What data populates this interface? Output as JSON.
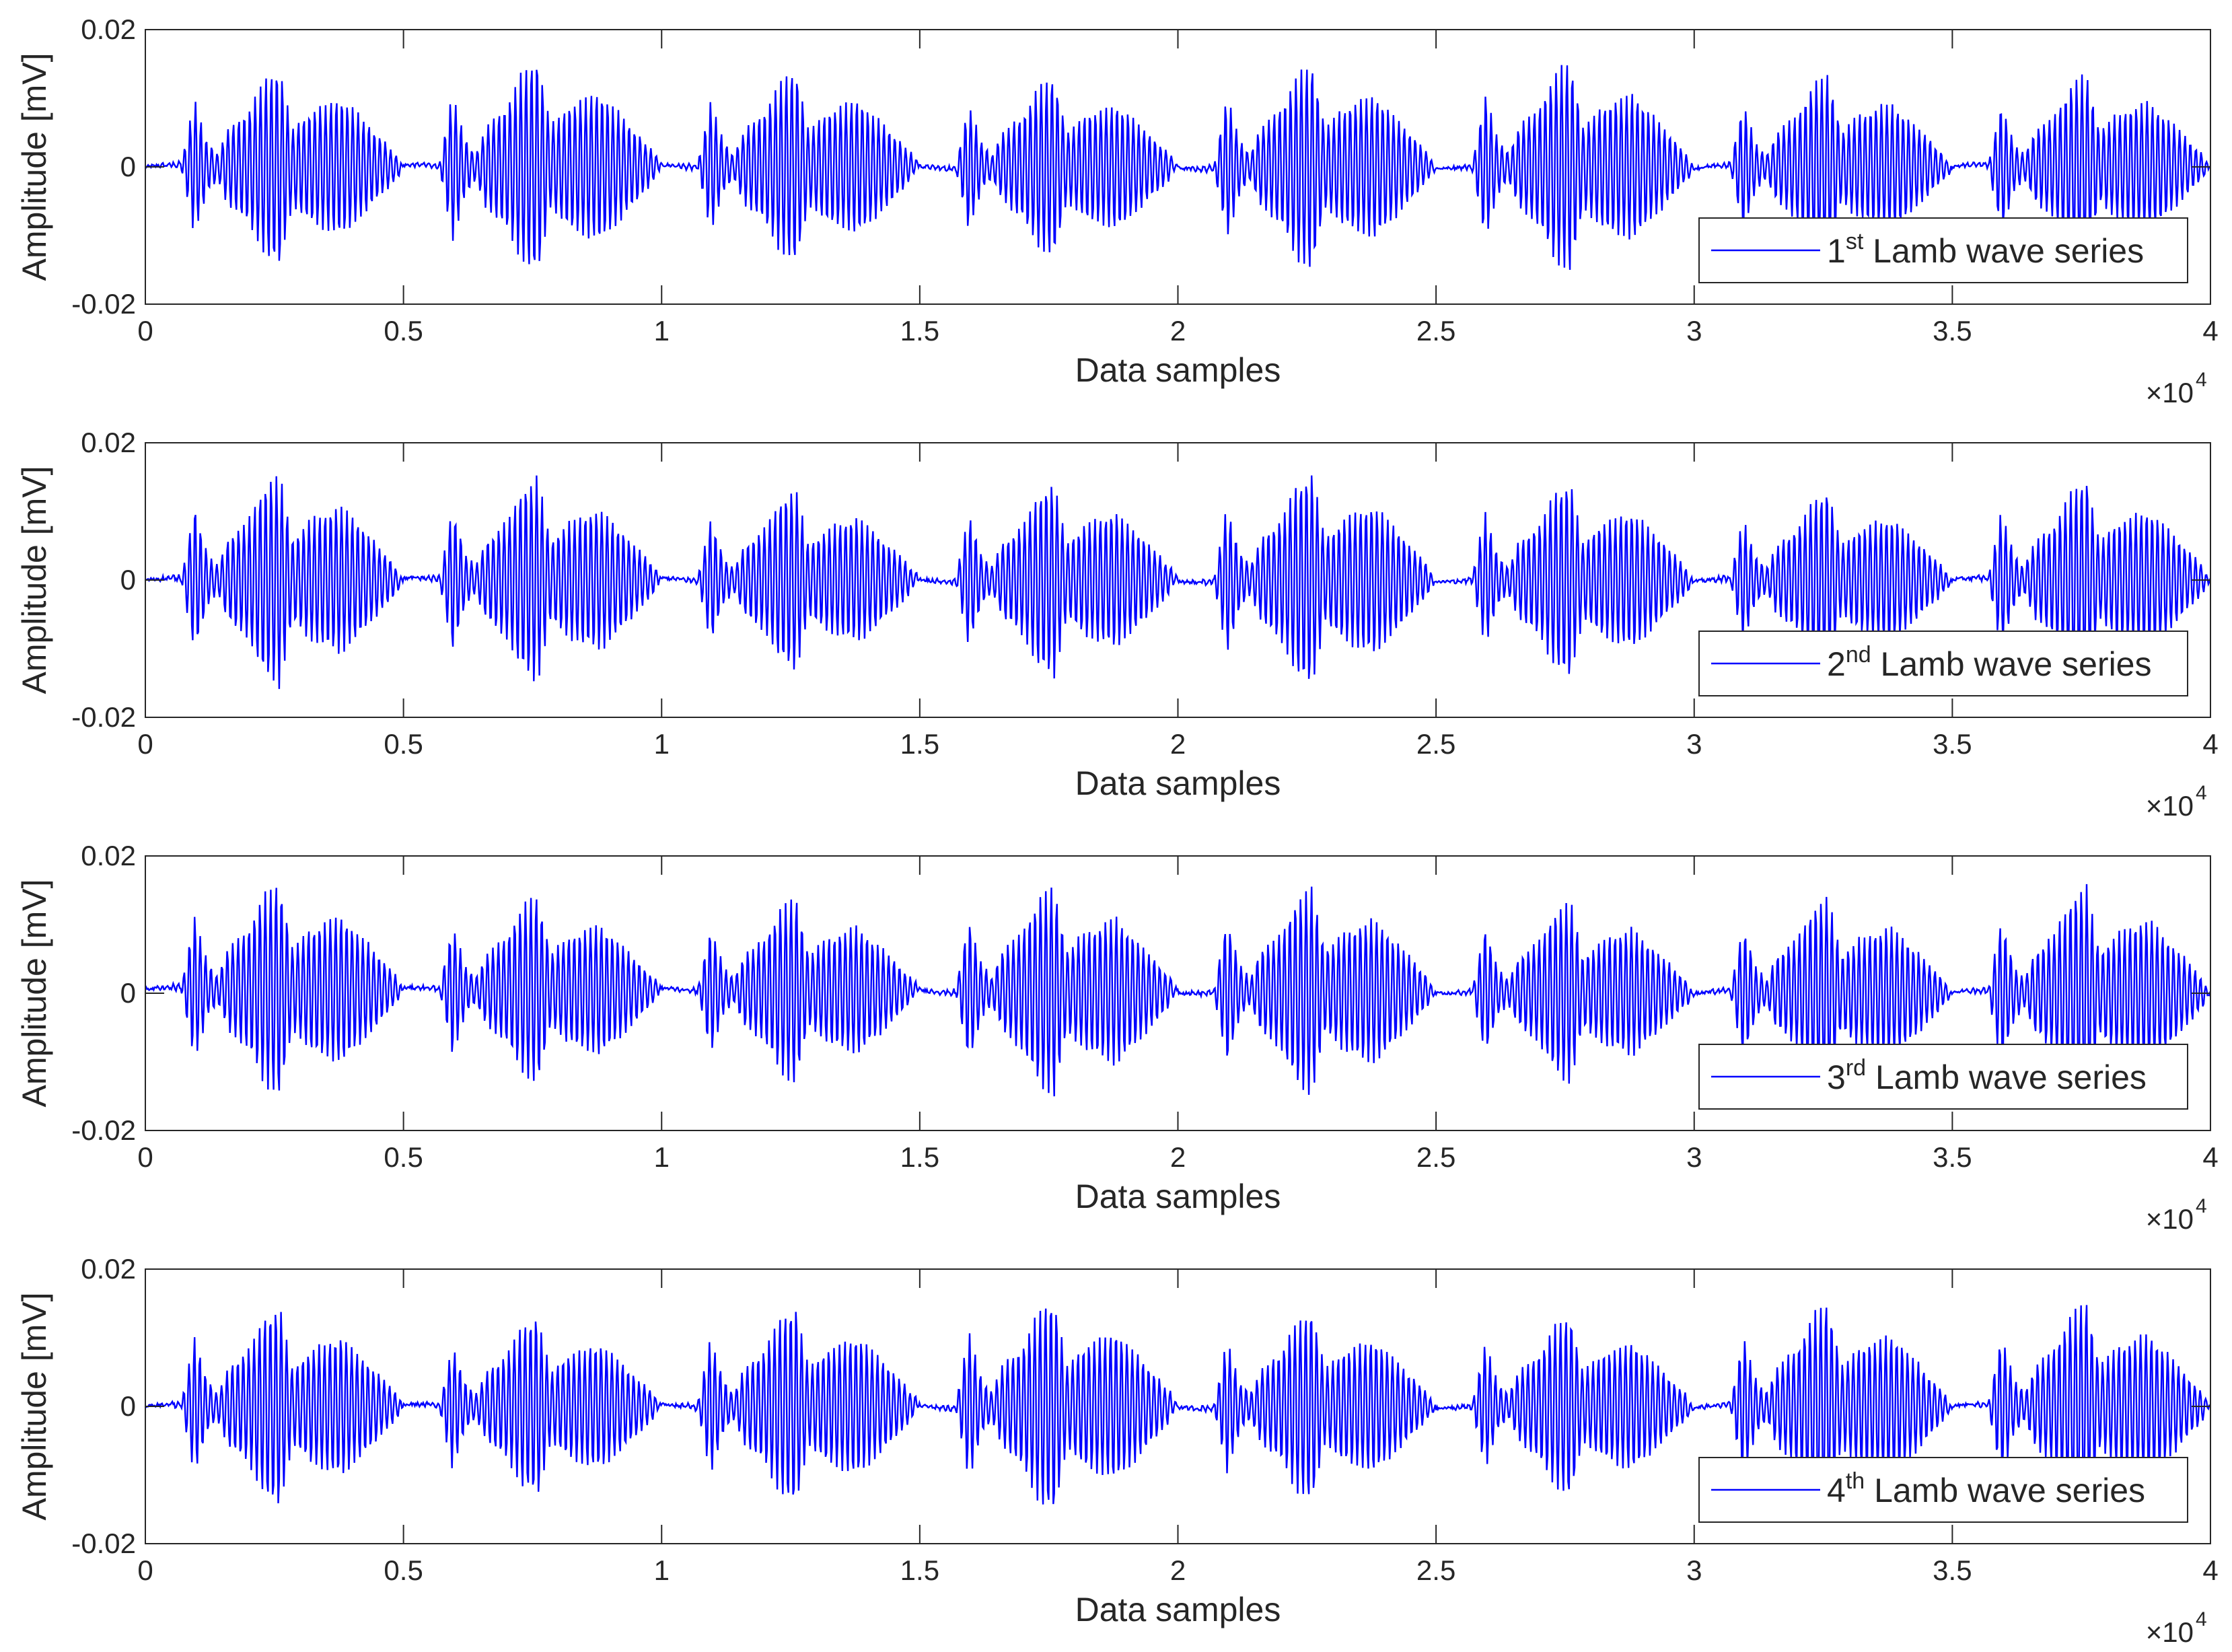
{
  "chart_data": [
    {
      "type": "line",
      "xlabel": "Data samples",
      "ylabel": "Amplitude [mV]",
      "xlim": [
        0,
        40000
      ],
      "ylim": [
        -0.02,
        0.02
      ],
      "x_exponent_label": "×10",
      "x_exponent_power": "4",
      "xticks": [
        0,
        5000,
        10000,
        15000,
        20000,
        25000,
        30000,
        35000,
        40000
      ],
      "xtick_labels": [
        "0",
        "0.5",
        "1",
        "1.5",
        "2",
        "2.5",
        "3",
        "3.5",
        "4"
      ],
      "yticks": [
        -0.02,
        0,
        0.02
      ],
      "ytick_labels": [
        "-0.02",
        "0",
        "0.02"
      ],
      "grid": false,
      "legend_position": "bottom-right",
      "series": [
        {
          "legend_number": "1",
          "legend_superscript": "st",
          "legend_text": "Lamb wave series",
          "color": "#0000ff",
          "period": 5000,
          "n_bursts": 8,
          "peak_envelope": [
            {
              "x": 0,
              "y": 0.0
            },
            {
              "x": 700,
              "y": 0.0004
            },
            {
              "x": 950,
              "y": 0.011
            },
            {
              "x": 1200,
              "y": 0.004
            },
            {
              "x": 1400,
              "y": 0.002
            },
            {
              "x": 1600,
              "y": 0.006
            },
            {
              "x": 2000,
              "y": 0.009
            },
            {
              "x": 2300,
              "y": 0.014
            },
            {
              "x": 2600,
              "y": 0.016
            },
            {
              "x": 2850,
              "y": 0.006
            },
            {
              "x": 3200,
              "y": 0.009
            },
            {
              "x": 3800,
              "y": 0.011
            },
            {
              "x": 4300,
              "y": 0.007
            },
            {
              "x": 4850,
              "y": 0.002
            },
            {
              "x": 5000,
              "y": 0.0
            }
          ]
        }
      ]
    },
    {
      "type": "line",
      "xlabel": "Data samples",
      "ylabel": "Amplitude [mV]",
      "xlim": [
        0,
        40000
      ],
      "ylim": [
        -0.02,
        0.02
      ],
      "x_exponent_label": "×10",
      "x_exponent_power": "4",
      "xticks": [
        0,
        5000,
        10000,
        15000,
        20000,
        25000,
        30000,
        35000,
        40000
      ],
      "xtick_labels": [
        "0",
        "0.5",
        "1",
        "1.5",
        "2",
        "2.5",
        "3",
        "3.5",
        "4"
      ],
      "yticks": [
        -0.02,
        0,
        0.02
      ],
      "ytick_labels": [
        "-0.02",
        "0",
        "0.02"
      ],
      "grid": false,
      "legend_position": "bottom-right",
      "series": [
        {
          "legend_number": "2",
          "legend_superscript": "nd",
          "legend_text": "Lamb wave series",
          "color": "#0000ff",
          "period": 5000,
          "n_bursts": 8,
          "peak_envelope": [
            {
              "x": 0,
              "y": 0.0
            },
            {
              "x": 700,
              "y": 0.0004
            },
            {
              "x": 950,
              "y": 0.011
            },
            {
              "x": 1200,
              "y": 0.004
            },
            {
              "x": 1400,
              "y": 0.002
            },
            {
              "x": 1600,
              "y": 0.006
            },
            {
              "x": 2000,
              "y": 0.009
            },
            {
              "x": 2300,
              "y": 0.014
            },
            {
              "x": 2600,
              "y": 0.016
            },
            {
              "x": 2850,
              "y": 0.006
            },
            {
              "x": 3200,
              "y": 0.009
            },
            {
              "x": 3800,
              "y": 0.011
            },
            {
              "x": 4300,
              "y": 0.007
            },
            {
              "x": 4850,
              "y": 0.002
            },
            {
              "x": 5000,
              "y": 0.0
            }
          ]
        }
      ]
    },
    {
      "type": "line",
      "xlabel": "Data samples",
      "ylabel": "Amplitude [mV]",
      "xlim": [
        0,
        40000
      ],
      "ylim": [
        -0.02,
        0.02
      ],
      "x_exponent_label": "×10",
      "x_exponent_power": "4",
      "xticks": [
        0,
        5000,
        10000,
        15000,
        20000,
        25000,
        30000,
        35000,
        40000
      ],
      "xtick_labels": [
        "0",
        "0.5",
        "1",
        "1.5",
        "2",
        "2.5",
        "3",
        "3.5",
        "4"
      ],
      "yticks": [
        -0.02,
        0,
        0.02
      ],
      "ytick_labels": [
        "-0.02",
        "0",
        "0.02"
      ],
      "grid": false,
      "legend_position": "bottom-right",
      "series": [
        {
          "legend_number": "3",
          "legend_superscript": "rd",
          "legend_text": "Lamb wave series",
          "color": "#0000ff",
          "period": 5000,
          "n_bursts": 8,
          "peak_envelope": [
            {
              "x": 0,
              "y": 0.0
            },
            {
              "x": 700,
              "y": 0.0004
            },
            {
              "x": 950,
              "y": 0.011
            },
            {
              "x": 1200,
              "y": 0.004
            },
            {
              "x": 1400,
              "y": 0.002
            },
            {
              "x": 1600,
              "y": 0.006
            },
            {
              "x": 2000,
              "y": 0.009
            },
            {
              "x": 2300,
              "y": 0.014
            },
            {
              "x": 2600,
              "y": 0.016
            },
            {
              "x": 2850,
              "y": 0.006
            },
            {
              "x": 3200,
              "y": 0.009
            },
            {
              "x": 3800,
              "y": 0.011
            },
            {
              "x": 4300,
              "y": 0.007
            },
            {
              "x": 4850,
              "y": 0.002
            },
            {
              "x": 5000,
              "y": 0.0
            }
          ]
        }
      ]
    },
    {
      "type": "line",
      "xlabel": "Data samples",
      "ylabel": "Amplitude [mV]",
      "xlim": [
        0,
        40000
      ],
      "ylim": [
        -0.02,
        0.02
      ],
      "x_exponent_label": "×10",
      "x_exponent_power": "4",
      "xticks": [
        0,
        5000,
        10000,
        15000,
        20000,
        25000,
        30000,
        35000,
        40000
      ],
      "xtick_labels": [
        "0",
        "0.5",
        "1",
        "1.5",
        "2",
        "2.5",
        "3",
        "3.5",
        "4"
      ],
      "yticks": [
        -0.02,
        0,
        0.02
      ],
      "ytick_labels": [
        "-0.02",
        "0",
        "0.02"
      ],
      "grid": false,
      "legend_position": "bottom-right",
      "series": [
        {
          "legend_number": "4",
          "legend_superscript": "th",
          "legend_text": "Lamb wave series",
          "color": "#0000ff",
          "period": 5000,
          "n_bursts": 8,
          "peak_envelope": [
            {
              "x": 0,
              "y": 0.0
            },
            {
              "x": 700,
              "y": 0.0004
            },
            {
              "x": 950,
              "y": 0.011
            },
            {
              "x": 1200,
              "y": 0.004
            },
            {
              "x": 1400,
              "y": 0.002
            },
            {
              "x": 1600,
              "y": 0.006
            },
            {
              "x": 2000,
              "y": 0.009
            },
            {
              "x": 2300,
              "y": 0.014
            },
            {
              "x": 2600,
              "y": 0.016
            },
            {
              "x": 2850,
              "y": 0.006
            },
            {
              "x": 3200,
              "y": 0.009
            },
            {
              "x": 3800,
              "y": 0.011
            },
            {
              "x": 4300,
              "y": 0.007
            },
            {
              "x": 4850,
              "y": 0.002
            },
            {
              "x": 5000,
              "y": 0.0
            }
          ]
        }
      ]
    }
  ]
}
